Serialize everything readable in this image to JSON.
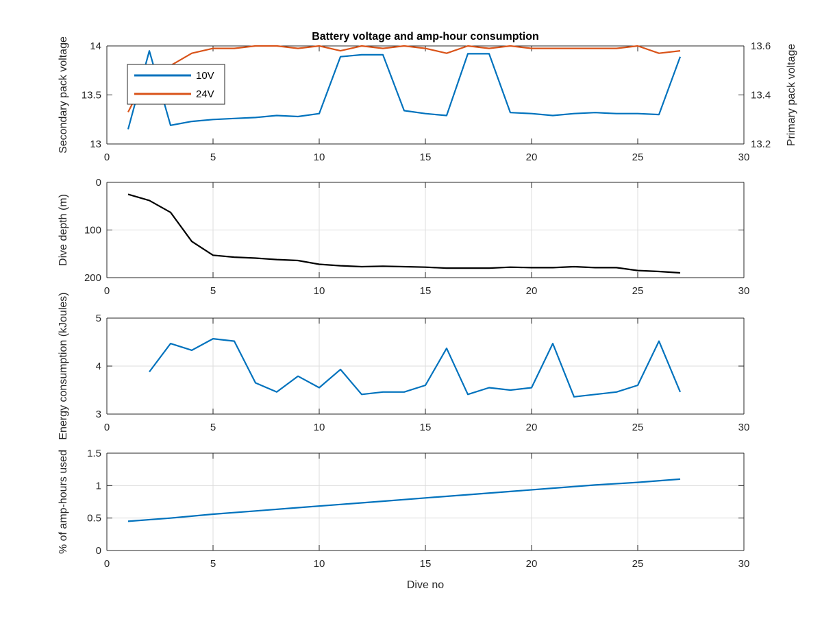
{
  "figure": {
    "title": "Battery voltage and amp-hour consumption",
    "xlabel": "Dive no"
  },
  "chart_data": [
    {
      "type": "line",
      "id": "voltage",
      "title": "Battery voltage and amp-hour consumption",
      "xlim": [
        0,
        30
      ],
      "xticks": [
        "0",
        "5",
        "10",
        "15",
        "20",
        "25",
        "30"
      ],
      "grid": false,
      "legend": "top-left",
      "left_axis": {
        "label": "Secondary pack voltage",
        "ylim": [
          13,
          14
        ],
        "ticks": [
          "13",
          "13.5",
          "14"
        ],
        "color": "#3b8fc4"
      },
      "right_axis": {
        "label": "Primary pack voltage",
        "ylim": [
          13.2,
          13.6
        ],
        "ticks": [
          "13.2",
          "13.4",
          "13.6"
        ],
        "color": "#d95319"
      },
      "series": [
        {
          "name": "10V",
          "axis": "left",
          "color": "#0072bd",
          "x": [
            1,
            2,
            3,
            4,
            5,
            6,
            7,
            8,
            9,
            10,
            11,
            12,
            13,
            14,
            15,
            16,
            17,
            18,
            19,
            20,
            21,
            22,
            23,
            24,
            25,
            26,
            27
          ],
          "y": [
            13.15,
            13.95,
            13.19,
            13.23,
            13.25,
            13.26,
            13.27,
            13.29,
            13.28,
            13.31,
            13.89,
            13.91,
            13.91,
            13.34,
            13.31,
            13.29,
            13.92,
            13.92,
            13.32,
            13.31,
            13.29,
            13.31,
            13.32,
            13.31,
            13.31,
            13.3,
            13.89
          ]
        },
        {
          "name": "24V",
          "axis": "right",
          "color": "#d95319",
          "x": [
            1,
            2,
            3,
            4,
            5,
            6,
            7,
            8,
            9,
            10,
            11,
            12,
            13,
            14,
            15,
            16,
            17,
            18,
            19,
            20,
            21,
            22,
            23,
            24,
            25,
            26,
            27
          ],
          "y": [
            13.33,
            13.5,
            13.52,
            13.57,
            13.59,
            13.59,
            13.6,
            13.6,
            13.59,
            13.6,
            13.58,
            13.6,
            13.59,
            13.6,
            13.59,
            13.57,
            13.6,
            13.59,
            13.6,
            13.59,
            13.59,
            13.59,
            13.59,
            13.59,
            13.6,
            13.57,
            13.58
          ]
        }
      ]
    },
    {
      "type": "line",
      "id": "depth",
      "xlim": [
        0,
        30
      ],
      "xticks": [
        "0",
        "5",
        "10",
        "15",
        "20",
        "25",
        "30"
      ],
      "grid": true,
      "ylabel": "Dive depth (m)",
      "ylim": [
        0,
        200
      ],
      "yreversed": true,
      "yticks": [
        0,
        100,
        200
      ],
      "series": [
        {
          "color": "#000000",
          "x": [
            1,
            2,
            3,
            4,
            5,
            6,
            7,
            8,
            9,
            10,
            11,
            12,
            13,
            14,
            15,
            16,
            17,
            18,
            19,
            20,
            21,
            22,
            23,
            24,
            25,
            26,
            27
          ],
          "y": [
            25,
            38,
            63,
            124,
            153,
            157,
            159,
            162,
            164,
            172,
            175,
            177,
            176,
            177,
            178,
            180,
            180,
            180,
            178,
            179,
            179,
            177,
            179,
            179,
            185,
            187,
            190
          ]
        }
      ]
    },
    {
      "type": "line",
      "id": "energy",
      "xlim": [
        0,
        30
      ],
      "xticks": [
        "0",
        "5",
        "10",
        "15",
        "20",
        "25",
        "30"
      ],
      "grid": true,
      "ylabel": "Energy consumption (kJoules)",
      "ylim": [
        3,
        5
      ],
      "yticks": [
        3,
        4,
        5
      ],
      "series": [
        {
          "color": "#0072bd",
          "x": [
            2,
            3,
            4,
            5,
            6,
            7,
            8,
            9,
            10,
            11,
            12,
            13,
            14,
            15,
            16,
            17,
            18,
            19,
            20,
            21,
            22,
            23,
            24,
            25,
            26,
            27
          ],
          "y": [
            3.88,
            4.47,
            4.33,
            4.57,
            4.52,
            3.65,
            3.46,
            3.79,
            3.55,
            3.93,
            3.41,
            3.46,
            3.46,
            3.6,
            4.37,
            3.41,
            3.55,
            3.5,
            3.55,
            4.47,
            3.36,
            3.41,
            3.46,
            3.6,
            4.52,
            3.46
          ]
        }
      ]
    },
    {
      "type": "line",
      "id": "amphours",
      "xlim": [
        0,
        30
      ],
      "xticks": [
        "0",
        "5",
        "10",
        "15",
        "20",
        "25",
        "30"
      ],
      "grid": true,
      "ylabel": "% of amp-hours used",
      "xlabel": "Dive no",
      "ylim": [
        0,
        1.5
      ],
      "yticks": [
        "0",
        "0.5",
        "1",
        "1.5"
      ],
      "series": [
        {
          "color": "#0072bd",
          "x": [
            1,
            3,
            5,
            7,
            9,
            11,
            13,
            15,
            17,
            19,
            21,
            23,
            25,
            27
          ],
          "y": [
            0.45,
            0.5,
            0.56,
            0.61,
            0.66,
            0.71,
            0.76,
            0.81,
            0.86,
            0.91,
            0.96,
            1.01,
            1.05,
            1.1
          ]
        }
      ]
    }
  ]
}
